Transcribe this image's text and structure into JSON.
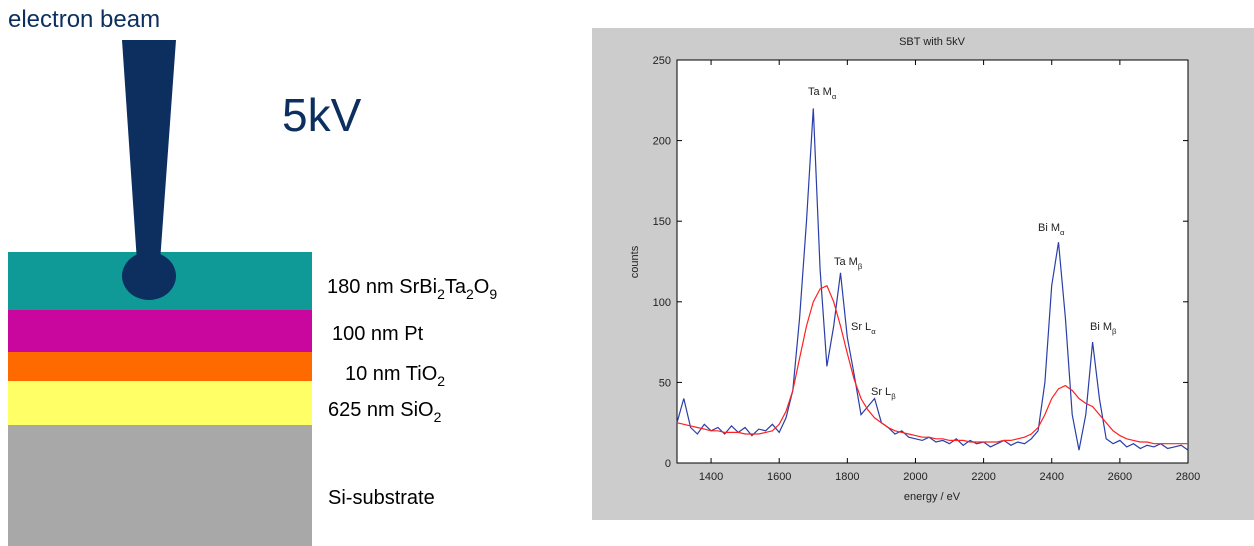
{
  "diagram": {
    "beam_label": "electron beam",
    "voltage": "5kV",
    "layers": [
      {
        "color": "#0f9a97",
        "parts": [
          {
            "t": "180 nm SrBi",
            "sub": "2"
          },
          {
            "t": "Ta",
            "sub": "2"
          },
          {
            "t": "O",
            "sub": "9"
          }
        ]
      },
      {
        "color": "#c9079f",
        "parts": [
          {
            "t": "100 nm Pt"
          }
        ]
      },
      {
        "color": "#ff6a00",
        "parts": [
          {
            "t": "10 nm TiO",
            "sub": "2"
          }
        ]
      },
      {
        "color": "#ffff66",
        "parts": [
          {
            "t": "625 nm  SiO",
            "sub": "2"
          }
        ]
      },
      {
        "color": "#a8a8a8",
        "parts": [
          {
            "t": "Si-substrate"
          }
        ]
      }
    ]
  },
  "chart_data": {
    "type": "line",
    "title": "SBT with 5kV",
    "x_label": "energy / eV",
    "y_label": "counts",
    "xlim": [
      1300,
      2800
    ],
    "ylim": [
      0,
      250
    ],
    "xticks": [
      1400,
      1600,
      1800,
      2000,
      2200,
      2400,
      2600,
      2800
    ],
    "yticks": [
      0,
      50,
      100,
      150,
      200,
      250
    ],
    "x": [
      1300,
      1320,
      1340,
      1360,
      1380,
      1400,
      1420,
      1440,
      1460,
      1480,
      1500,
      1520,
      1540,
      1560,
      1580,
      1600,
      1620,
      1640,
      1660,
      1680,
      1700,
      1720,
      1740,
      1760,
      1780,
      1800,
      1820,
      1840,
      1860,
      1880,
      1900,
      1920,
      1940,
      1960,
      1980,
      2000,
      2020,
      2040,
      2060,
      2080,
      2100,
      2120,
      2140,
      2160,
      2180,
      2200,
      2220,
      2240,
      2260,
      2280,
      2300,
      2320,
      2340,
      2360,
      2380,
      2400,
      2420,
      2440,
      2460,
      2480,
      2500,
      2520,
      2540,
      2560,
      2580,
      2600,
      2620,
      2640,
      2660,
      2680,
      2700,
      2720,
      2740,
      2760,
      2780,
      2800
    ],
    "series": [
      {
        "color": "#2a3ea8",
        "values": [
          25,
          40,
          22,
          18,
          24,
          20,
          22,
          18,
          23,
          19,
          22,
          17,
          21,
          20,
          24,
          19,
          28,
          45,
          90,
          150,
          220,
          120,
          60,
          85,
          118,
          78,
          55,
          30,
          35,
          40,
          25,
          22,
          18,
          20,
          16,
          15,
          14,
          16,
          13,
          14,
          12,
          15,
          11,
          14,
          12,
          13,
          10,
          12,
          14,
          11,
          13,
          12,
          15,
          20,
          50,
          110,
          137,
          90,
          30,
          8,
          30,
          75,
          40,
          15,
          12,
          14,
          10,
          12,
          9,
          11,
          10,
          12,
          9,
          10,
          11,
          8
        ]
      },
      {
        "color": "#ff2020",
        "values": [
          25,
          24,
          23,
          22,
          21,
          20,
          20,
          19,
          19,
          19,
          18,
          18,
          18,
          19,
          20,
          24,
          32,
          45,
          65,
          85,
          100,
          108,
          110,
          100,
          85,
          68,
          52,
          40,
          33,
          28,
          25,
          22,
          20,
          19,
          18,
          17,
          16,
          16,
          15,
          15,
          14,
          14,
          14,
          13,
          13,
          13,
          13,
          13,
          14,
          14,
          15,
          16,
          18,
          22,
          30,
          40,
          46,
          48,
          45,
          40,
          37,
          35,
          30,
          25,
          20,
          17,
          15,
          14,
          13,
          13,
          12,
          12,
          12,
          12,
          12,
          12
        ]
      }
    ],
    "annotations": [
      {
        "t": "Ta M",
        "sub": "α"
      },
      {
        "t": "Ta M",
        "sub": "β"
      },
      {
        "t": "Sr L",
        "sub": "α"
      },
      {
        "t": "Sr L",
        "sub": "β"
      },
      {
        "t": "Bi M",
        "sub": "α"
      },
      {
        "t": "Bi M",
        "sub": "β"
      }
    ]
  }
}
